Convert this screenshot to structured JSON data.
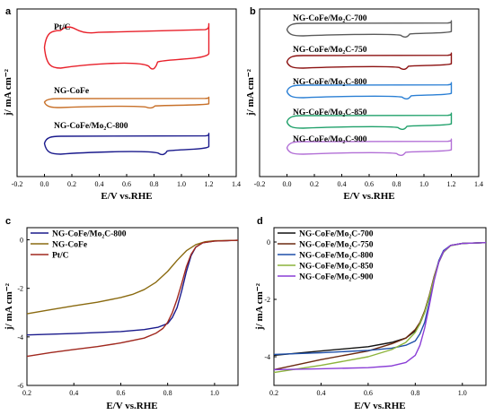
{
  "chart_data": [
    {
      "panel": "a",
      "type": "line",
      "xlabel": "E/V vs.RHE",
      "ylabel": "j/ mA cm⁻²",
      "xlim": [
        -0.2,
        1.4
      ],
      "xticks": [
        "-0.2",
        "0.0",
        "0.2",
        "0.4",
        "0.6",
        "0.8",
        "1.0",
        "1.2",
        "1.4"
      ],
      "y_tick_labels": false,
      "legend": "inline labels above each trace",
      "series": [
        {
          "name": "Pt/C",
          "color": "#e8202a",
          "reduction_peak_x": 0.8
        },
        {
          "name": "NG-CoFe",
          "color": "#c8712a",
          "reduction_peak_x": 0.78
        },
        {
          "name": "NG-CoFe/Mo₂C-800",
          "color": "#1a1a8c",
          "reduction_peak_x": 0.87
        }
      ]
    },
    {
      "panel": "b",
      "type": "line",
      "xlabel": "E/V vs.RHE",
      "ylabel": "j/ mA cm⁻²",
      "xlim": [
        -0.2,
        1.4
      ],
      "xticks": [
        "-0.2",
        "0.0",
        "0.2",
        "0.4",
        "0.6",
        "0.8",
        "1.0",
        "1.2",
        "1.4"
      ],
      "y_tick_labels": false,
      "legend": "inline labels above each trace",
      "series": [
        {
          "name": "NG-CoFe/Mo₂C-700",
          "color": "#5a5a5a",
          "reduction_peak_x": 0.87
        },
        {
          "name": "NG-CoFe/Mo₂C-750",
          "color": "#8b1010",
          "reduction_peak_x": 0.86
        },
        {
          "name": "NG-CoFe/Mo₂C-800",
          "color": "#2a7fd4",
          "reduction_peak_x": 0.88
        },
        {
          "name": "NG-CoFe/Mo₂C-850",
          "color": "#1fa06a",
          "reduction_peak_x": 0.85
        },
        {
          "name": "NG-CoFe/Mo₂C-900",
          "color": "#b26fd6",
          "reduction_peak_x": 0.84
        }
      ]
    },
    {
      "panel": "c",
      "type": "line",
      "xlabel": "E/V vs.RHE",
      "ylabel": "j/ mA cm⁻²",
      "xlim": [
        0.2,
        1.1
      ],
      "ylim": [
        -6,
        0.5
      ],
      "xticks": [
        "0.2",
        "0.4",
        "0.6",
        "0.8",
        "1.0"
      ],
      "yticks": [
        "0",
        "-2",
        "-4",
        "-6"
      ],
      "legend": "top-left",
      "series": [
        {
          "name": "NG-CoFe/Mo₂C-800",
          "color": "#1a1a8c",
          "x": [
            0.2,
            0.4,
            0.6,
            0.7,
            0.76,
            0.8,
            0.82,
            0.84,
            0.86,
            0.88,
            0.9,
            0.92,
            0.95,
            1.0,
            1.1
          ],
          "y": [
            -3.92,
            -3.86,
            -3.78,
            -3.7,
            -3.6,
            -3.45,
            -3.2,
            -2.8,
            -2.1,
            -1.3,
            -0.65,
            -0.3,
            -0.12,
            -0.05,
            -0.02
          ]
        },
        {
          "name": "NG-CoFe",
          "color": "#8a6a10",
          "x": [
            0.2,
            0.3,
            0.4,
            0.5,
            0.6,
            0.65,
            0.7,
            0.75,
            0.8,
            0.84,
            0.88,
            0.92,
            0.96,
            1.0,
            1.1
          ],
          "y": [
            -3.05,
            -2.88,
            -2.72,
            -2.57,
            -2.38,
            -2.25,
            -2.05,
            -1.75,
            -1.3,
            -0.85,
            -0.45,
            -0.2,
            -0.08,
            -0.04,
            -0.02
          ]
        },
        {
          "name": "Pt/C",
          "color": "#a0281e",
          "x": [
            0.2,
            0.3,
            0.4,
            0.5,
            0.6,
            0.7,
            0.75,
            0.78,
            0.8,
            0.82,
            0.84,
            0.86,
            0.88,
            0.9,
            0.92,
            0.95,
            1.0,
            1.1
          ],
          "y": [
            -4.8,
            -4.65,
            -4.52,
            -4.4,
            -4.25,
            -4.05,
            -3.85,
            -3.65,
            -3.4,
            -3.0,
            -2.45,
            -1.8,
            -1.1,
            -0.6,
            -0.3,
            -0.12,
            -0.05,
            -0.02
          ]
        }
      ]
    },
    {
      "panel": "d",
      "type": "line",
      "xlabel": "E/V vs.RHE",
      "ylabel": "j/ mA cm⁻²",
      "xlim": [
        0.2,
        1.1
      ],
      "ylim": [
        -5,
        0.5
      ],
      "xticks": [
        "0.2",
        "0.4",
        "0.6",
        "0.8",
        "1.0"
      ],
      "yticks": [
        "0",
        "-2",
        "-4"
      ],
      "legend": "top-left",
      "series": [
        {
          "name": "NG-CoFe/Mo₂C-700",
          "color": "#111111",
          "x": [
            0.2,
            0.4,
            0.6,
            0.7,
            0.76,
            0.8,
            0.82,
            0.84,
            0.86,
            0.88,
            0.9,
            0.92,
            0.95,
            1.0,
            1.1
          ],
          "y": [
            -3.95,
            -3.8,
            -3.65,
            -3.5,
            -3.35,
            -3.1,
            -2.85,
            -2.45,
            -1.9,
            -1.25,
            -0.7,
            -0.35,
            -0.12,
            -0.05,
            -0.02
          ]
        },
        {
          "name": "NG-CoFe/Mo₂C-750",
          "color": "#6b2a10",
          "x": [
            0.2,
            0.4,
            0.6,
            0.7,
            0.76,
            0.8,
            0.82,
            0.84,
            0.86,
            0.88,
            0.9,
            0.92,
            0.95,
            1.0,
            1.1
          ],
          "y": [
            -4.45,
            -4.1,
            -3.8,
            -3.55,
            -3.35,
            -3.05,
            -2.8,
            -2.4,
            -1.85,
            -1.2,
            -0.68,
            -0.33,
            -0.12,
            -0.05,
            -0.02
          ]
        },
        {
          "name": "NG-CoFe/Mo₂C-800",
          "color": "#1e4fa8",
          "x": [
            0.2,
            0.4,
            0.6,
            0.7,
            0.76,
            0.8,
            0.82,
            0.84,
            0.86,
            0.88,
            0.9,
            0.92,
            0.95,
            1.0,
            1.1
          ],
          "y": [
            -3.92,
            -3.86,
            -3.78,
            -3.7,
            -3.6,
            -3.45,
            -3.2,
            -2.8,
            -2.1,
            -1.3,
            -0.65,
            -0.3,
            -0.12,
            -0.05,
            -0.02
          ]
        },
        {
          "name": "NG-CoFe/Mo₂C-850",
          "color": "#8cb43c",
          "x": [
            0.2,
            0.4,
            0.6,
            0.7,
            0.76,
            0.8,
            0.82,
            0.84,
            0.86,
            0.88,
            0.9,
            0.92,
            0.95,
            1.0,
            1.1
          ],
          "y": [
            -4.55,
            -4.3,
            -4.0,
            -3.75,
            -3.5,
            -3.15,
            -2.85,
            -2.45,
            -1.9,
            -1.25,
            -0.7,
            -0.35,
            -0.13,
            -0.05,
            -0.02
          ]
        },
        {
          "name": "NG-CoFe/Mo₂C-900",
          "color": "#8a3ed6",
          "x": [
            0.2,
            0.4,
            0.6,
            0.7,
            0.76,
            0.8,
            0.82,
            0.84,
            0.86,
            0.88,
            0.9,
            0.92,
            0.95,
            1.0,
            1.1
          ],
          "y": [
            -4.45,
            -4.42,
            -4.38,
            -4.32,
            -4.2,
            -3.95,
            -3.6,
            -3.0,
            -2.2,
            -1.35,
            -0.7,
            -0.33,
            -0.12,
            -0.05,
            -0.02
          ]
        }
      ]
    }
  ]
}
